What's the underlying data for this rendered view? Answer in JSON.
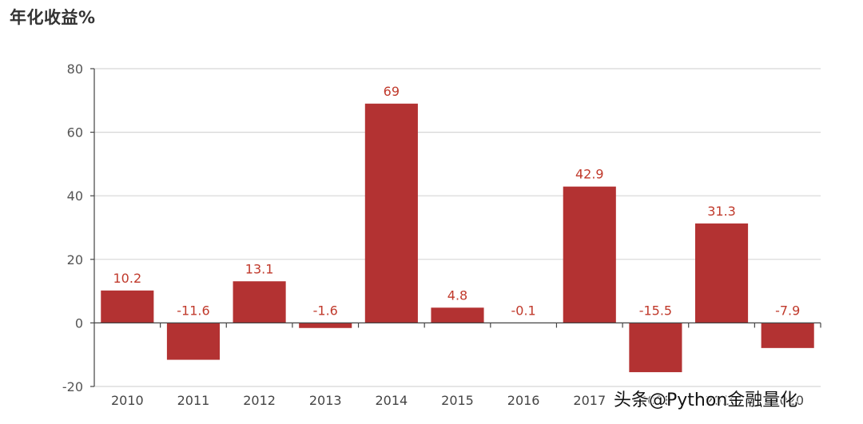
{
  "chart_data": {
    "type": "bar",
    "title": "年化收益%",
    "xlabel": "",
    "ylabel": "",
    "categories": [
      "2010",
      "2011",
      "2012",
      "2013",
      "2014",
      "2015",
      "2016",
      "2017",
      "2018",
      "2019",
      "2020"
    ],
    "values": [
      10.2,
      -11.6,
      13.1,
      -1.6,
      69,
      4.8,
      -0.1,
      42.9,
      -15.5,
      31.3,
      -7.9
    ],
    "ylim": [
      -20,
      80
    ],
    "yticks": [
      -20,
      0,
      20,
      40,
      60,
      80
    ],
    "grid": true,
    "legend": "none",
    "bar_color": "#b33232",
    "label_color": "#c0392b"
  },
  "watermark": "头条@Python金融量化"
}
